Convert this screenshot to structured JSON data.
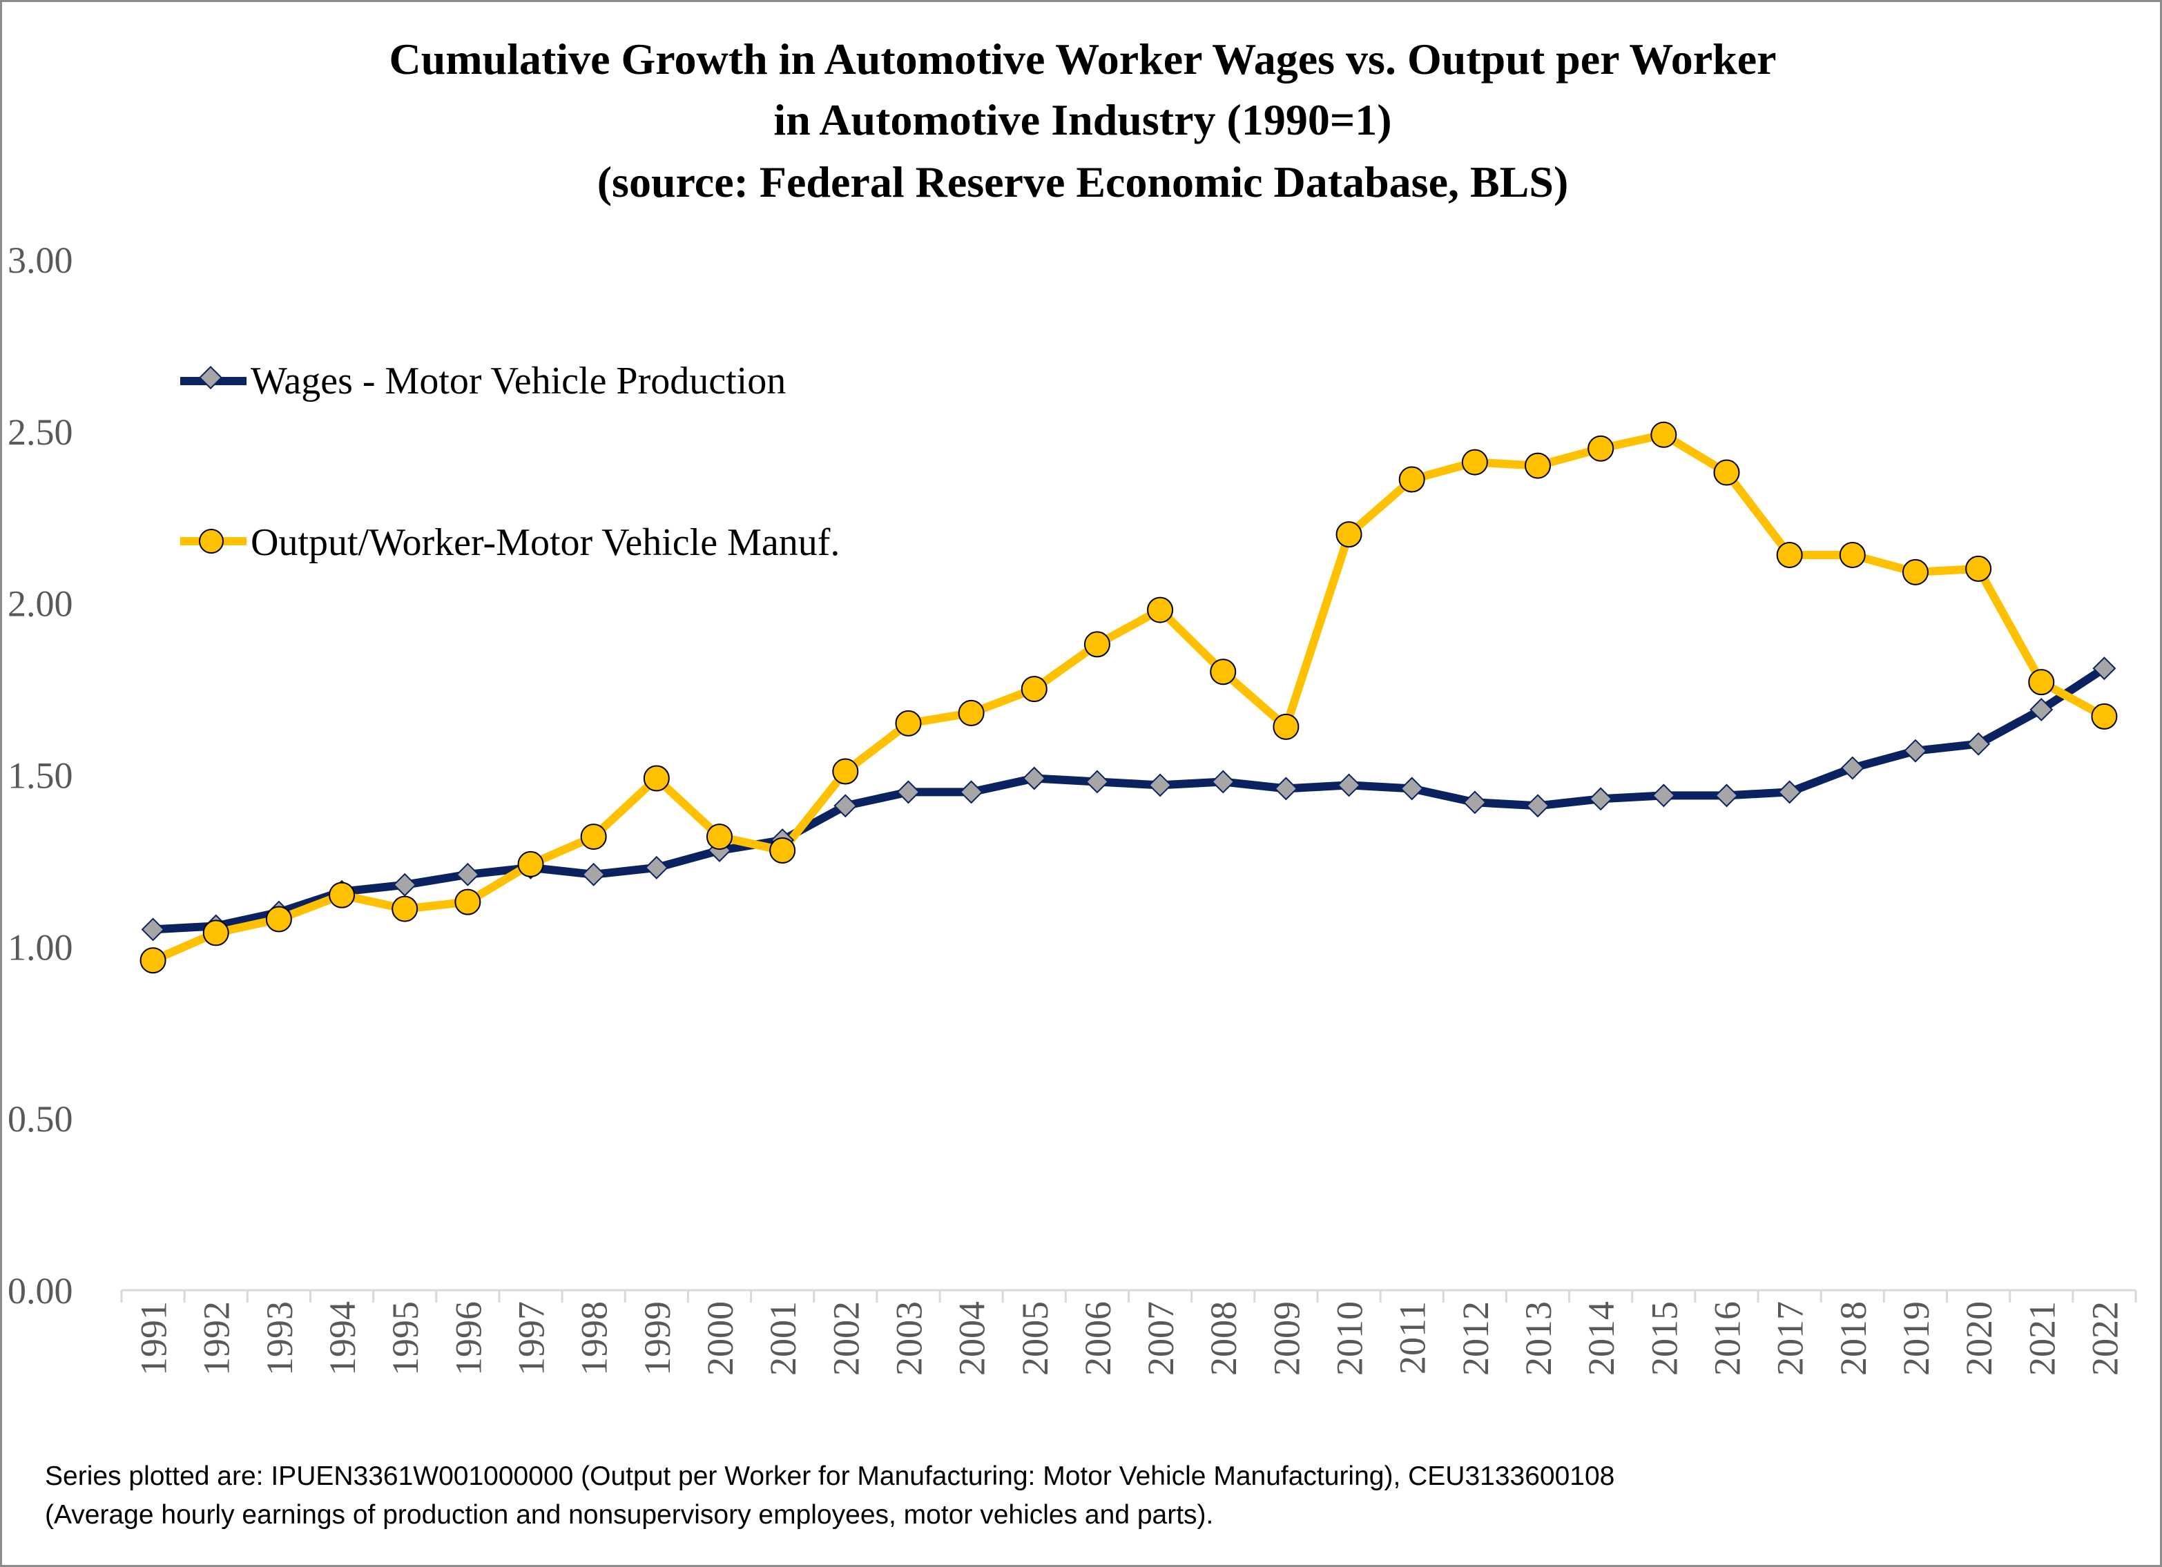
{
  "chart_data": {
    "type": "line",
    "title_lines": [
      "Cumulative Growth in Automotive Worker Wages vs. Output per Worker",
      "in Automotive Industry (1990=1)",
      "(source: Federal Reserve Economic Database, BLS)"
    ],
    "ylim": [
      0,
      3
    ],
    "y_ticks": [
      "0.00",
      "0.50",
      "1.00",
      "1.50",
      "2.00",
      "2.50",
      "3.00"
    ],
    "x": [
      "1991",
      "1992",
      "1993",
      "1994",
      "1995",
      "1996",
      "1997",
      "1998",
      "1999",
      "2000",
      "2001",
      "2002",
      "2003",
      "2004",
      "2005",
      "2006",
      "2007",
      "2008",
      "2009",
      "2010",
      "2011",
      "2012",
      "2013",
      "2014",
      "2015",
      "2016",
      "2017",
      "2018",
      "2019",
      "2020",
      "2021",
      "2022"
    ],
    "grid": false,
    "legend_position": "upper-left",
    "series": [
      {
        "name": "Wages - Motor Vehicle Production",
        "color": "#0b2261",
        "marker": "diamond",
        "marker_color": "#a6a6a6",
        "values": [
          1.05,
          1.06,
          1.1,
          1.16,
          1.18,
          1.21,
          1.23,
          1.21,
          1.23,
          1.28,
          1.31,
          1.41,
          1.45,
          1.45,
          1.49,
          1.48,
          1.47,
          1.48,
          1.46,
          1.47,
          1.46,
          1.42,
          1.41,
          1.43,
          1.44,
          1.44,
          1.45,
          1.52,
          1.57,
          1.59,
          1.69,
          1.81
        ]
      },
      {
        "name": "Output/Worker-Motor Vehicle Manuf.",
        "color": "#ffc000",
        "marker": "circle",
        "marker_color": "#ffc000",
        "values": [
          0.96,
          1.04,
          1.08,
          1.15,
          1.11,
          1.13,
          1.24,
          1.32,
          1.49,
          1.32,
          1.28,
          1.51,
          1.65,
          1.68,
          1.75,
          1.88,
          1.98,
          1.8,
          1.64,
          2.2,
          2.36,
          2.41,
          2.4,
          2.45,
          2.49,
          2.38,
          2.14,
          2.14,
          2.09,
          2.1,
          1.77,
          1.67
        ]
      }
    ]
  },
  "footnote": {
    "line1": "Series plotted are: IPUEN3361W001000000 (Output per Worker for Manufacturing: Motor Vehicle Manufacturing), CEU3133600108",
    "line2": "(Average hourly earnings of production and nonsupervisory employees, motor vehicles and parts)."
  }
}
